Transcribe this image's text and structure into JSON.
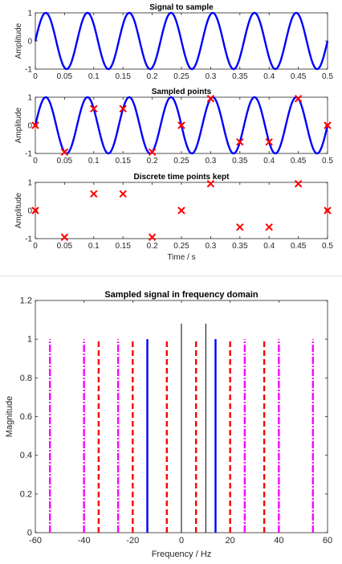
{
  "chart_data": [
    {
      "type": "line",
      "title": "Signal to sample",
      "xlabel": "",
      "ylabel": "Amplitude",
      "xlim": [
        0,
        0.5
      ],
      "ylim": [
        -1,
        1
      ],
      "xticks": [
        "0",
        "0.05",
        "0.1",
        "0.15",
        "0.2",
        "0.25",
        "0.3",
        "0.35",
        "0.4",
        "0.45",
        "0.5"
      ],
      "yticks": [
        "-1",
        "0",
        "1"
      ],
      "series": [
        {
          "function": "sin(2*pi*14*t)",
          "frequency_hz": 14,
          "color": "#0000ff"
        }
      ]
    },
    {
      "type": "line",
      "title": "Sampled points",
      "xlabel": "",
      "ylabel": "Amplitude",
      "xlim": [
        0,
        0.5
      ],
      "ylim": [
        -1,
        1
      ],
      "xticks": [
        "0",
        "0.05",
        "0.1",
        "0.15",
        "0.2",
        "0.25",
        "0.3",
        "0.35",
        "0.4",
        "0.45",
        "0.5"
      ],
      "yticks": [
        "-1",
        "0",
        "1"
      ],
      "series": [
        {
          "function": "sin(2*pi*14*t)",
          "frequency_hz": 14,
          "color": "#0000ff"
        },
        {
          "marker": "x",
          "color": "#ff0000",
          "x": [
            0,
            0.05,
            0.1,
            0.15,
            0.2,
            0.25,
            0.3,
            0.35,
            0.4,
            0.45,
            0.5
          ],
          "y": [
            0,
            -0.95,
            0.59,
            0.59,
            -0.95,
            0,
            0.95,
            -0.59,
            -0.59,
            0.95,
            0
          ]
        }
      ]
    },
    {
      "type": "scatter",
      "title": "Discrete time points kept",
      "xlabel": "Time / s",
      "ylabel": "Amplitude",
      "xlim": [
        0,
        0.5
      ],
      "ylim": [
        -1,
        1
      ],
      "xticks": [
        "0",
        "0.05",
        "0.1",
        "0.15",
        "0.2",
        "0.25",
        "0.3",
        "0.35",
        "0.4",
        "0.45",
        "0.5"
      ],
      "yticks": [
        "-1",
        "0",
        "1"
      ],
      "series": [
        {
          "marker": "x",
          "color": "#ff0000",
          "x": [
            0,
            0.05,
            0.1,
            0.15,
            0.2,
            0.25,
            0.3,
            0.35,
            0.4,
            0.45,
            0.5
          ],
          "y": [
            0,
            -0.95,
            0.59,
            0.59,
            -0.95,
            0,
            0.95,
            -0.59,
            -0.59,
            0.95,
            0
          ]
        }
      ]
    },
    {
      "type": "stem",
      "title": "Sampled signal in frequency domain",
      "xlabel": "Frequency / Hz",
      "ylabel": "Magnitude",
      "xlim": [
        -60,
        60
      ],
      "ylim": [
        0,
        1.2
      ],
      "xticks": [
        "-60",
        "-40",
        "-20",
        "0",
        "20",
        "40",
        "60"
      ],
      "yticks": [
        "0",
        "0.2",
        "0.4",
        "0.6",
        "0.8",
        "1",
        "1.2"
      ],
      "sampling_marks_hz": [
        0,
        10
      ],
      "sampling_mark_height": 1.08,
      "series": [
        {
          "style": "solid",
          "color": "#0000ff",
          "x": [
            -14,
            14
          ],
          "y": [
            1,
            1
          ]
        },
        {
          "style": "dashed",
          "color": "#ff0000",
          "x": [
            -34,
            -20,
            -6,
            6,
            20,
            34
          ],
          "y": [
            1,
            1,
            1,
            1,
            1,
            1
          ]
        },
        {
          "style": "dash-dot",
          "color": "#ff00ff",
          "x": [
            -54,
            -40,
            -26,
            26,
            40,
            54
          ],
          "y": [
            1,
            1,
            1,
            1,
            1,
            1
          ]
        }
      ]
    }
  ]
}
